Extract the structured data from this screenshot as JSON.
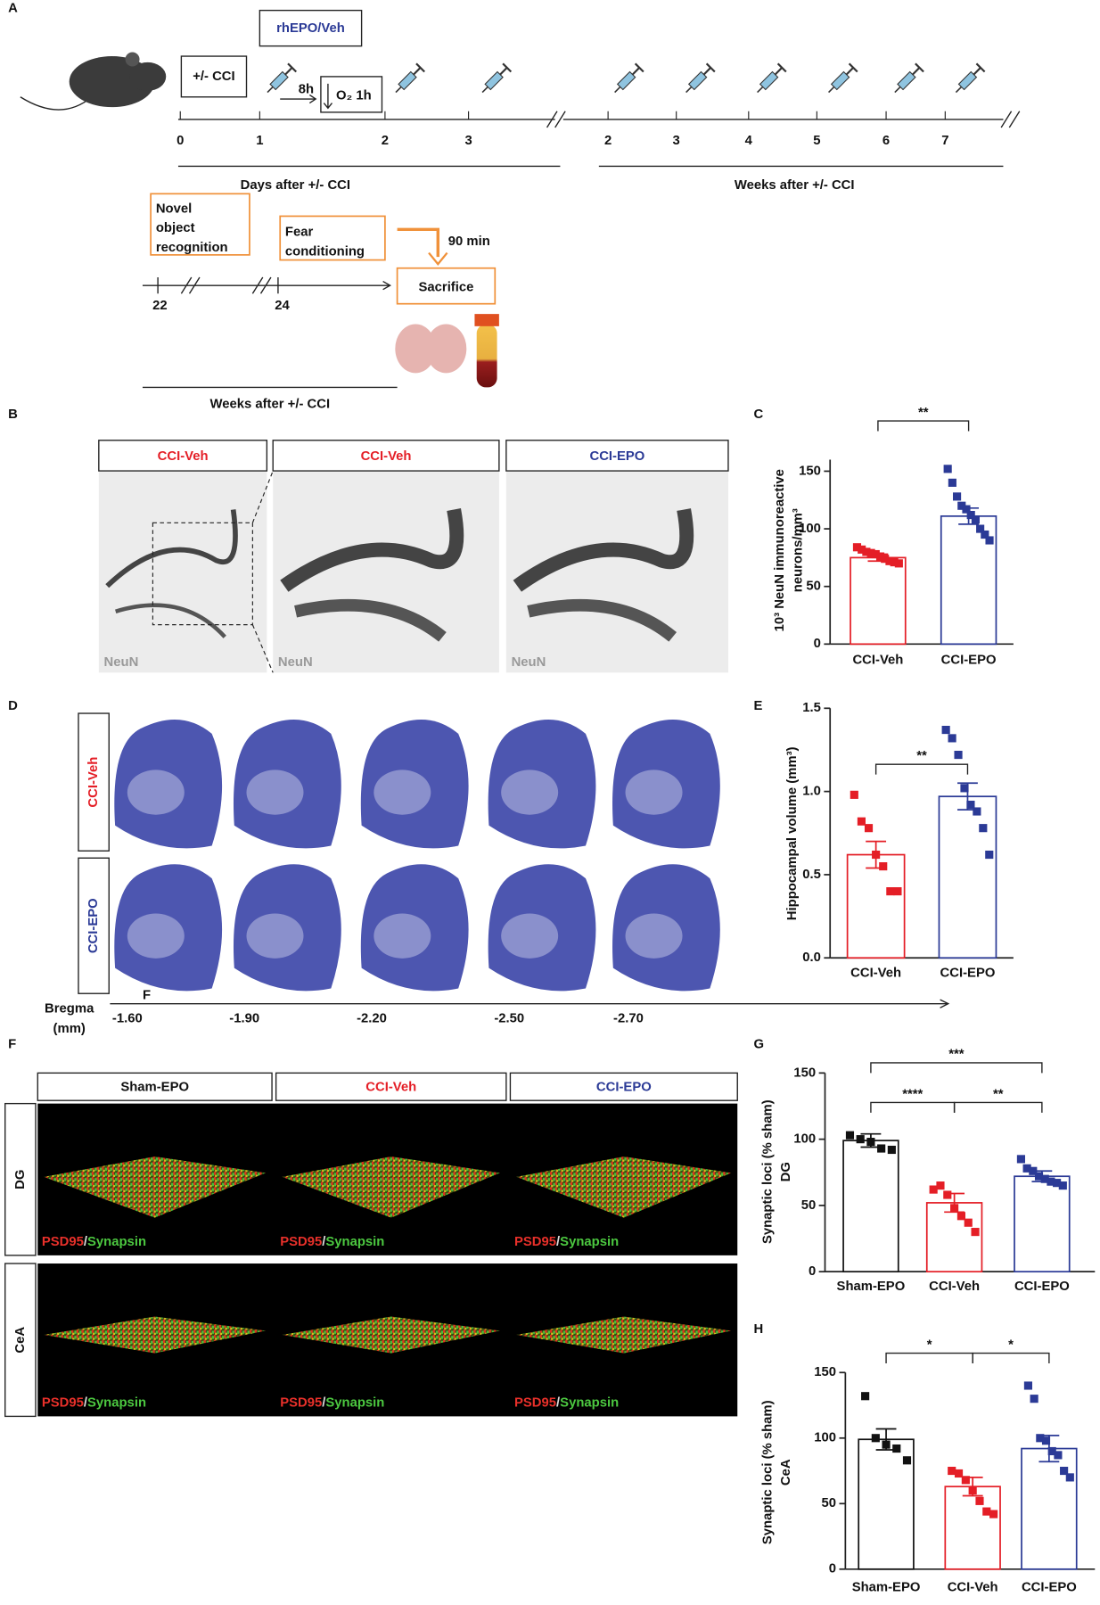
{
  "panel_a": {
    "label": "A",
    "injury": "+/- CCI",
    "treatment": "rhEPO/Veh",
    "interval": "8h",
    "oxygen": "O₂ 1h",
    "day_ticks": [
      "0",
      "1",
      "2",
      "3"
    ],
    "week_ticks": [
      "2",
      "3",
      "4",
      "5",
      "6",
      "7"
    ],
    "days_caption": "Days after +/- CCI",
    "weeks_caption": "Weeks after +/- CCI",
    "test_1": [
      "Novel",
      "object",
      "recognition"
    ],
    "test_2": [
      "Fear",
      "conditioning"
    ],
    "delay": "90 min",
    "endpoint": "Sacrifice",
    "late_ticks": [
      "22",
      "24"
    ],
    "late_caption": "Weeks after +/- CCI"
  },
  "panel_b": {
    "label": "B",
    "headers": [
      "CCI-Veh",
      "CCI-Veh",
      "CCI-EPO"
    ],
    "stain": "NeuN"
  },
  "panel_d": {
    "label": "D",
    "rows": [
      "CCI-Veh",
      "CCI-EPO"
    ],
    "axis_label": [
      "Bregma",
      "(mm)"
    ],
    "positions": [
      "-1.60",
      "-1.90",
      "-2.20",
      "-2.50",
      "-2.70"
    ],
    "marker": "F"
  },
  "panel_f": {
    "label": "F",
    "headers": [
      "Sham-EPO",
      "CCI-Veh",
      "CCI-EPO"
    ],
    "rows": [
      "DG",
      "CeA"
    ],
    "stain_red": "PSD95",
    "separator": "/",
    "stain_green": "Synapsin"
  },
  "chart_data": [
    {
      "type": "bar",
      "panel": "C",
      "ylabel": [
        "10³ NeuN immunoreactive",
        "neurons/mm³"
      ],
      "categories": [
        "CCI-Veh",
        "CCI-EPO"
      ],
      "values": [
        75,
        111
      ],
      "errors": [
        3,
        7
      ],
      "colors": [
        "#e41e26",
        "#2b3a96"
      ],
      "points": [
        [
          84,
          82,
          80,
          79,
          78,
          76,
          74,
          72,
          71,
          70
        ],
        [
          152,
          140,
          128,
          120,
          117,
          112,
          108,
          100,
          95,
          90
        ]
      ],
      "ylim": [
        0,
        160
      ],
      "yticks": [
        0,
        50,
        100,
        150
      ],
      "significance": [
        {
          "between": [
            0,
            1
          ],
          "label": "**"
        }
      ]
    },
    {
      "type": "bar",
      "panel": "E",
      "ylabel": [
        "Hippocampal volume (mm³)"
      ],
      "categories": [
        "CCI-Veh",
        "CCI-EPO"
      ],
      "values": [
        0.62,
        0.97
      ],
      "errors": [
        0.08,
        0.08
      ],
      "colors": [
        "#e41e26",
        "#2b3a96"
      ],
      "points": [
        [
          0.98,
          0.82,
          0.78,
          0.62,
          0.55,
          0.4,
          0.4
        ],
        [
          1.37,
          1.32,
          1.22,
          1.02,
          0.92,
          0.88,
          0.78,
          0.62
        ]
      ],
      "ylim": [
        0,
        1.5
      ],
      "yticks": [
        {
          "value": 0,
          "label": "0.0"
        },
        0.5,
        {
          "value": 1,
          "label": "1.0"
        },
        1.5
      ],
      "significance": [
        {
          "between": [
            0,
            1
          ],
          "label": "**"
        }
      ]
    },
    {
      "type": "bar",
      "panel": "G",
      "ylabel": [
        "Synaptic loci (% sham)",
        "DG"
      ],
      "categories": [
        "Sham-EPO",
        "CCI-Veh",
        "CCI-EPO"
      ],
      "values": [
        99,
        52,
        72
      ],
      "errors": [
        5,
        7,
        4
      ],
      "colors": [
        "#111111",
        "#e41e26",
        "#2b3a96"
      ],
      "points": [
        [
          103,
          100,
          98,
          93,
          92
        ],
        [
          62,
          65,
          58,
          48,
          42,
          37,
          30
        ],
        [
          85,
          78,
          76,
          72,
          70,
          68,
          67,
          65
        ]
      ],
      "ylim": [
        0,
        150
      ],
      "yticks": [
        0,
        50,
        100,
        150
      ],
      "significance": [
        {
          "between": [
            0,
            1
          ],
          "label": "****"
        },
        {
          "between": [
            1,
            2
          ],
          "label": "**"
        },
        {
          "between": [
            0,
            2
          ],
          "label": "***"
        }
      ]
    },
    {
      "type": "bar",
      "panel": "H",
      "ylabel": [
        "Synaptic  loci (% sham)",
        "CeA"
      ],
      "categories": [
        "Sham-EPO",
        "CCI-Veh",
        "CCI-EPO"
      ],
      "values": [
        99,
        63,
        92
      ],
      "errors": [
        8,
        7,
        10
      ],
      "colors": [
        "#111111",
        "#e41e26",
        "#2b3a96"
      ],
      "points": [
        [
          132,
          100,
          95,
          92,
          83
        ],
        [
          75,
          73,
          68,
          60,
          52,
          44,
          42
        ],
        [
          140,
          130,
          100,
          98,
          90,
          87,
          75,
          70
        ]
      ],
      "ylim": [
        0,
        150
      ],
      "yticks": [
        0,
        50,
        100,
        150
      ],
      "significance": [
        {
          "between": [
            0,
            1
          ],
          "label": "*"
        },
        {
          "between": [
            1,
            2
          ],
          "label": "*"
        }
      ]
    }
  ]
}
